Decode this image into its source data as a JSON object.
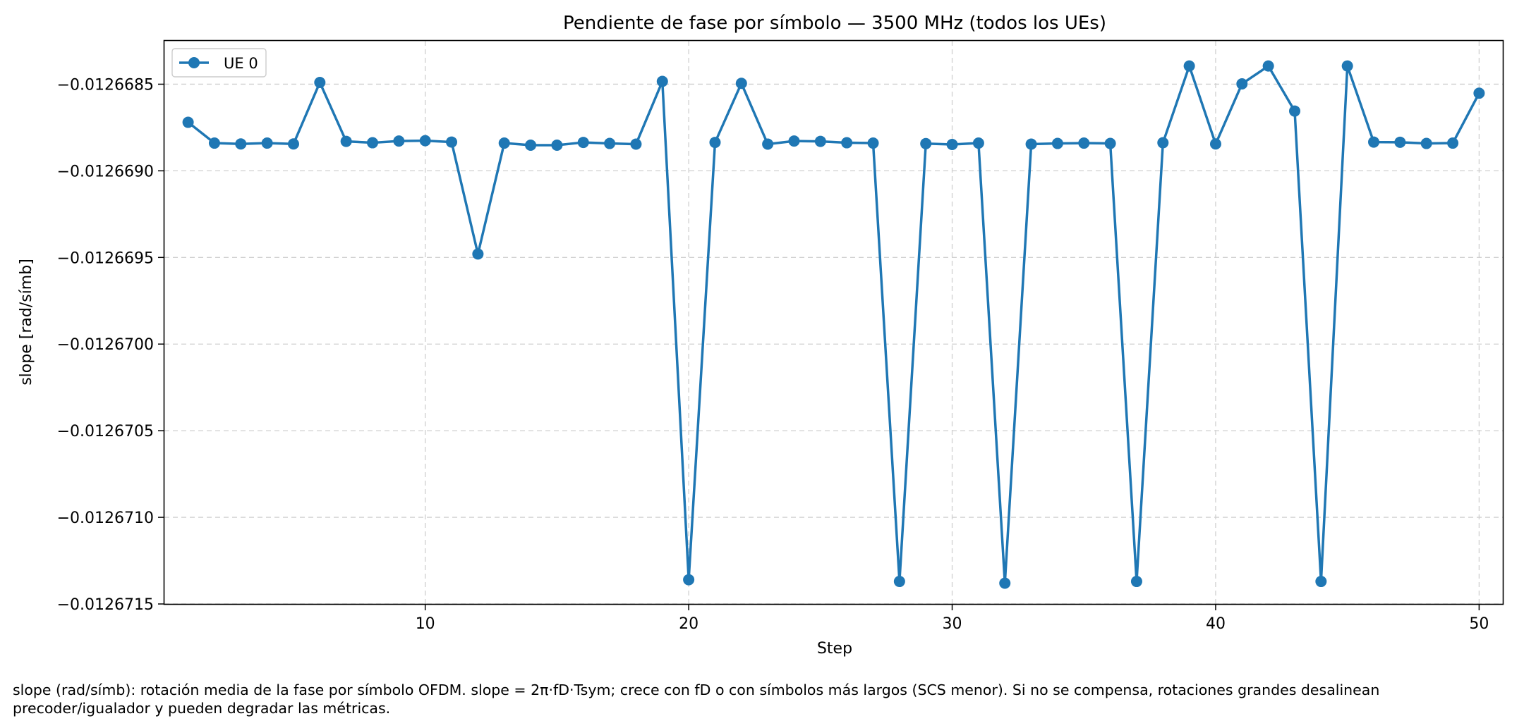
{
  "caption": "slope (rad/símb): rotación media de la fase por símbolo OFDM. slope = 2π·fD·Tsym; crece con fD o con símbolos más largos (SCS menor). Si no se compensa, rotaciones grandes desalinean precoder/igualador y pueden degradar las métricas.",
  "chart_data": {
    "type": "line",
    "title": "Pendiente de fase por símbolo — 3500 MHz (todos los UEs)",
    "xlabel": "Step",
    "ylabel": "slope [rad/símb]",
    "xlim": [
      0.1,
      50.9
    ],
    "ylim": [
      -0.0126715,
      -0.01266825
    ],
    "x_ticks": [
      10,
      20,
      30,
      40,
      50
    ],
    "y_ticks": [
      -0.0126685,
      -0.012669,
      -0.0126695,
      -0.01267,
      -0.0126705,
      -0.012671,
      -0.0126715
    ],
    "y_tick_labels": [
      "−0.0126685",
      "−0.0126690",
      "−0.0126695",
      "−0.0126700",
      "−0.0126705",
      "−0.0126710",
      "−0.0126715"
    ],
    "grid": true,
    "legend_position": "top-left",
    "series": [
      {
        "name": "UE 0",
        "color": "#1f77b4",
        "marker": "circle",
        "x": [
          1,
          2,
          3,
          4,
          5,
          6,
          7,
          8,
          9,
          10,
          11,
          12,
          13,
          14,
          15,
          16,
          17,
          18,
          19,
          20,
          21,
          22,
          23,
          24,
          25,
          26,
          27,
          28,
          29,
          30,
          31,
          32,
          33,
          34,
          35,
          36,
          37,
          38,
          39,
          40,
          41,
          42,
          43,
          44,
          45,
          46,
          47,
          48,
          49,
          50
        ],
        "y": [
          -0.01266872,
          -0.01266884,
          -0.012668845,
          -0.01266884,
          -0.012668845,
          -0.01266849,
          -0.01266883,
          -0.012668838,
          -0.012668828,
          -0.012668826,
          -0.012668834,
          -0.01266948,
          -0.01266884,
          -0.012668852,
          -0.012668852,
          -0.012668836,
          -0.012668842,
          -0.012668846,
          -0.012668484,
          -0.01267136,
          -0.012668836,
          -0.012668495,
          -0.012668846,
          -0.012668828,
          -0.01266883,
          -0.012668838,
          -0.01266884,
          -0.01267137,
          -0.012668843,
          -0.012668848,
          -0.01266884,
          -0.01267138,
          -0.012668846,
          -0.012668842,
          -0.01266884,
          -0.012668842,
          -0.01267137,
          -0.012668838,
          -0.012668395,
          -0.012668845,
          -0.012668498,
          -0.012668395,
          -0.012668655,
          -0.01267137,
          -0.012668395,
          -0.012668834,
          -0.012668835,
          -0.012668842,
          -0.01266884,
          -0.012668552
        ]
      }
    ]
  }
}
